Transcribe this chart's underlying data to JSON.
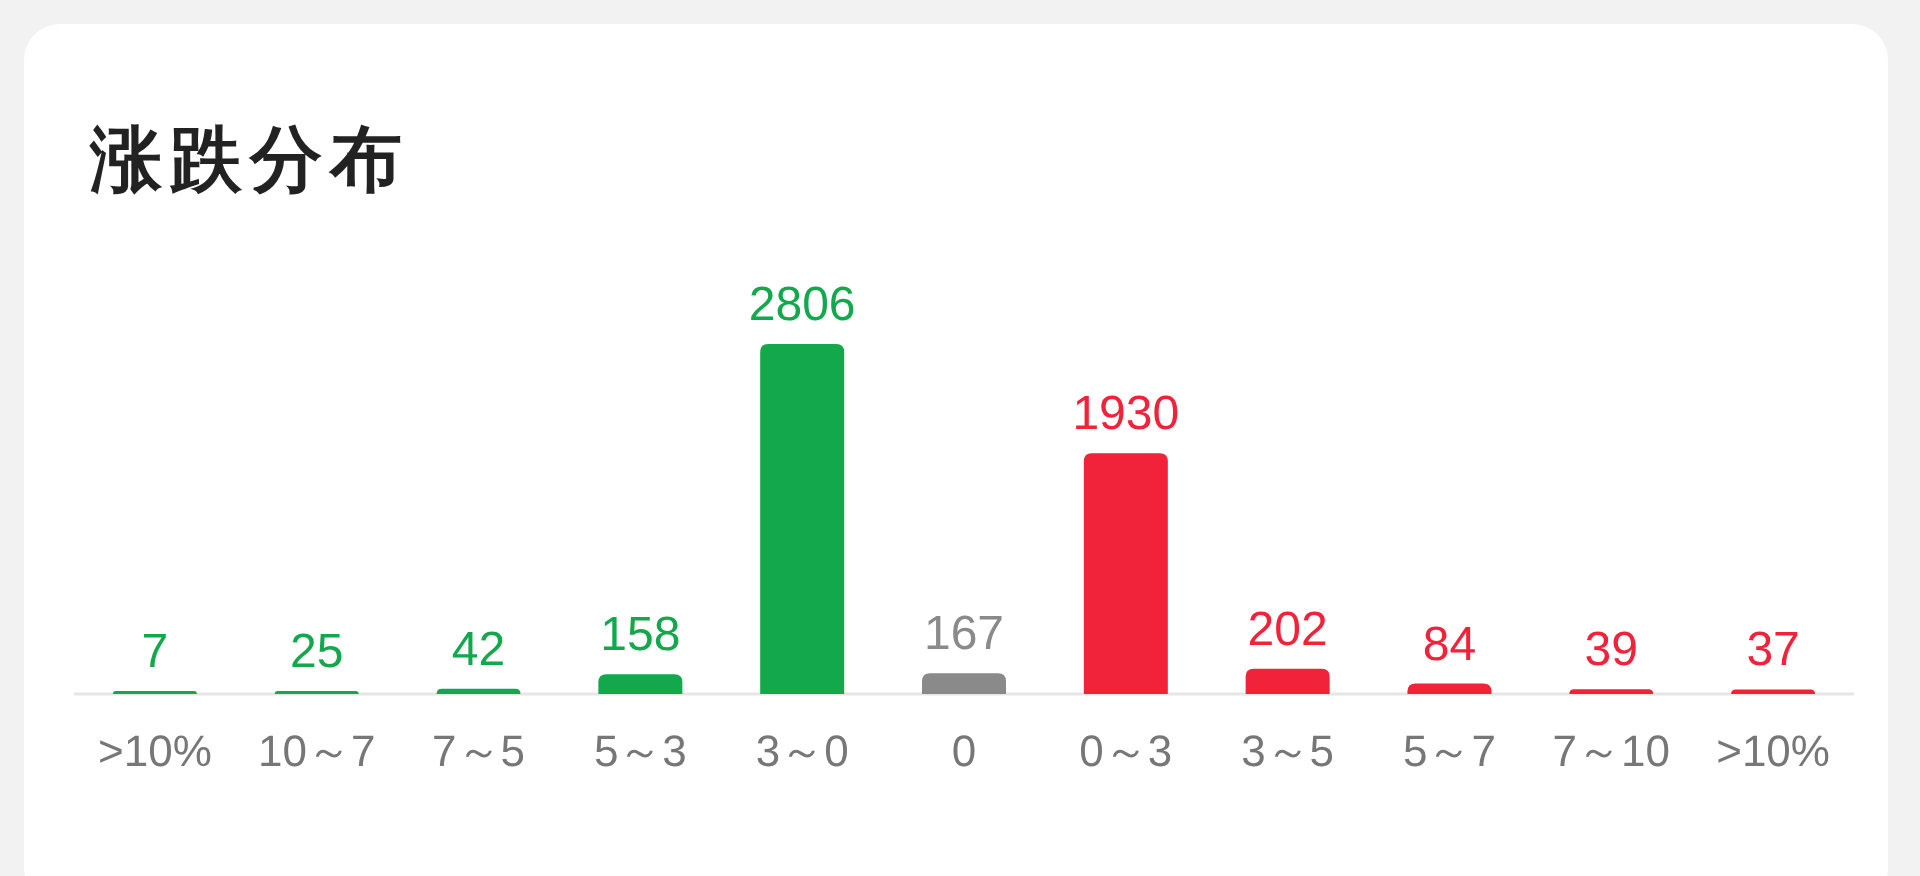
{
  "chart_data": {
    "type": "bar",
    "title": "涨跌分布",
    "categories": [
      ">10%",
      "10～7",
      "7～5",
      "5～3",
      "3～0",
      "0",
      "0～3",
      "3～5",
      "5～7",
      "7～10",
      ">10%"
    ],
    "values": [
      7,
      25,
      42,
      158,
      2806,
      167,
      1930,
      202,
      84,
      39,
      37
    ],
    "colors": [
      "#12a84b",
      "#12a84b",
      "#12a84b",
      "#12a84b",
      "#12a84b",
      "#8a8a8a",
      "#f0233a",
      "#f0233a",
      "#f0233a",
      "#f0233a",
      "#f0233a"
    ],
    "data_labels": true
  }
}
